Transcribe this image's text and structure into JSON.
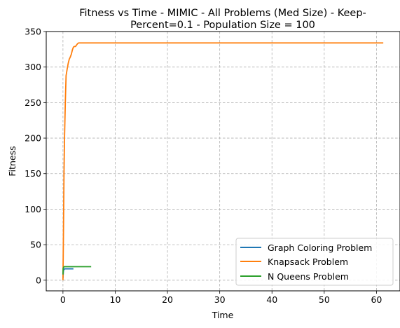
{
  "chart_data": {
    "type": "line",
    "title_line1": "Fitness vs Time - MIMIC - All Problems (Med Size) - Keep-",
    "title_line2": "Percent=0.1 - Population Size = 100",
    "xlabel": "Time",
    "ylabel": "Fitness",
    "xlim": [
      -3.2,
      64.5
    ],
    "ylim": [
      -15,
      350
    ],
    "xticks": [
      0,
      10,
      20,
      30,
      40,
      50,
      60
    ],
    "yticks": [
      0,
      50,
      100,
      150,
      200,
      250,
      300,
      350
    ],
    "grid": true,
    "legend_position": "lower-right",
    "series": [
      {
        "name": "Graph Coloring Problem",
        "color": "#1f77b4",
        "x": [
          0,
          0.1,
          0.3,
          0.6,
          1.0,
          1.5,
          2.0
        ],
        "y": [
          3,
          14,
          16,
          16,
          16,
          16,
          16
        ]
      },
      {
        "name": "Knapsack Problem",
        "color": "#ff7f0e",
        "x": [
          0,
          0.1,
          0.2,
          0.3,
          0.45,
          0.6,
          0.8,
          1.0,
          1.2,
          1.4,
          1.6,
          1.8,
          2.0,
          2.2,
          2.4,
          2.6,
          2.8,
          3.0,
          5,
          10,
          20,
          30,
          40,
          50,
          61.3
        ],
        "y": [
          0,
          70,
          150,
          200,
          250,
          288,
          297,
          305,
          311,
          314,
          318,
          324,
          328,
          329,
          329,
          331,
          333,
          334,
          334,
          334,
          334,
          334,
          334,
          334,
          334
        ]
      },
      {
        "name": "N Queens Problem",
        "color": "#2ca02c",
        "x": [
          0,
          0.05,
          0.2,
          0.6,
          1.0,
          2.0,
          3.0,
          4.0,
          5.4
        ],
        "y": [
          8,
          17,
          19,
          19,
          19,
          19,
          19,
          19,
          19
        ]
      }
    ]
  }
}
